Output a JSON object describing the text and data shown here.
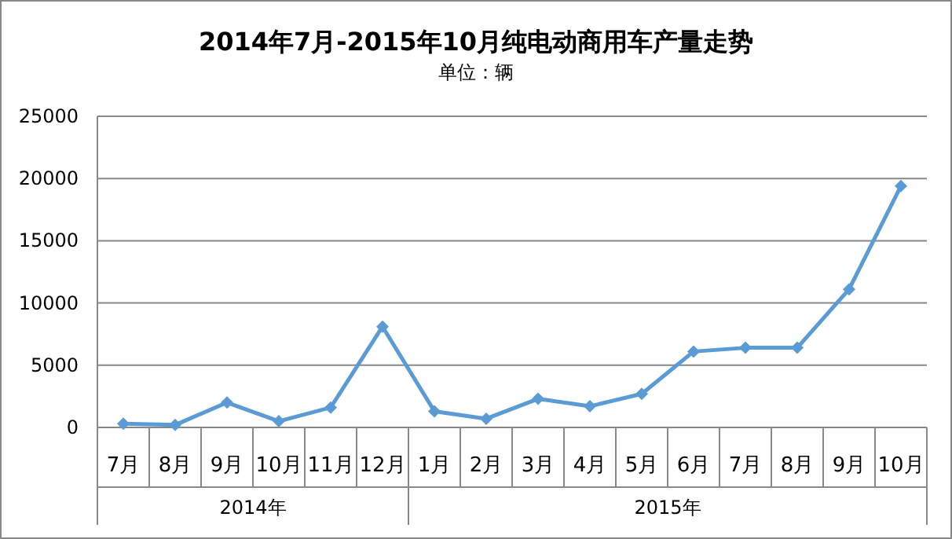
{
  "chart_data": {
    "type": "line",
    "title": "2014年7月-2015年10月纯电动商用车产量走势",
    "subtitle": "单位：辆",
    "categories": [
      "7月",
      "8月",
      "9月",
      "10月",
      "11月",
      "12月",
      "1月",
      "2月",
      "3月",
      "4月",
      "5月",
      "6月",
      "7月",
      "8月",
      "9月",
      "10月"
    ],
    "series": [
      {
        "color": "#5b9bd5",
        "values": [
          300,
          200,
          2000,
          500,
          1600,
          8100,
          1300,
          700,
          2300,
          1700,
          2700,
          6100,
          6400,
          6400,
          11100,
          19400
        ]
      }
    ],
    "annotations": [
      "2014年",
      "2015年"
    ],
    "ylim": [
      0,
      25000
    ],
    "yticks": [
      0,
      5000,
      10000,
      15000,
      20000,
      25000
    ],
    "grid": "y",
    "marker": "diamond",
    "line_style": "solid"
  }
}
